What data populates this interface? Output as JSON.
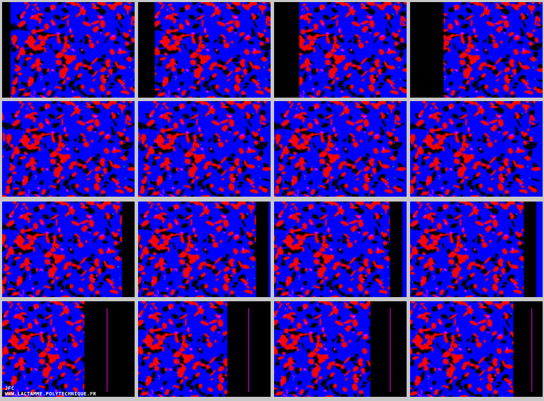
{
  "grid": {
    "rows": 4,
    "columns": 4,
    "tile_count": 16
  },
  "colors": {
    "background": "#c8c8c8",
    "blue": "#0000ff",
    "red": "#ff0000",
    "black": "#000000",
    "magenta": "#ff00ff",
    "green": "#00ff00",
    "cyan": "#00ffff"
  },
  "credit": {
    "author": "JFC",
    "site": "WWW.LACTAMME.POLYTECHNIQUE.FR"
  }
}
